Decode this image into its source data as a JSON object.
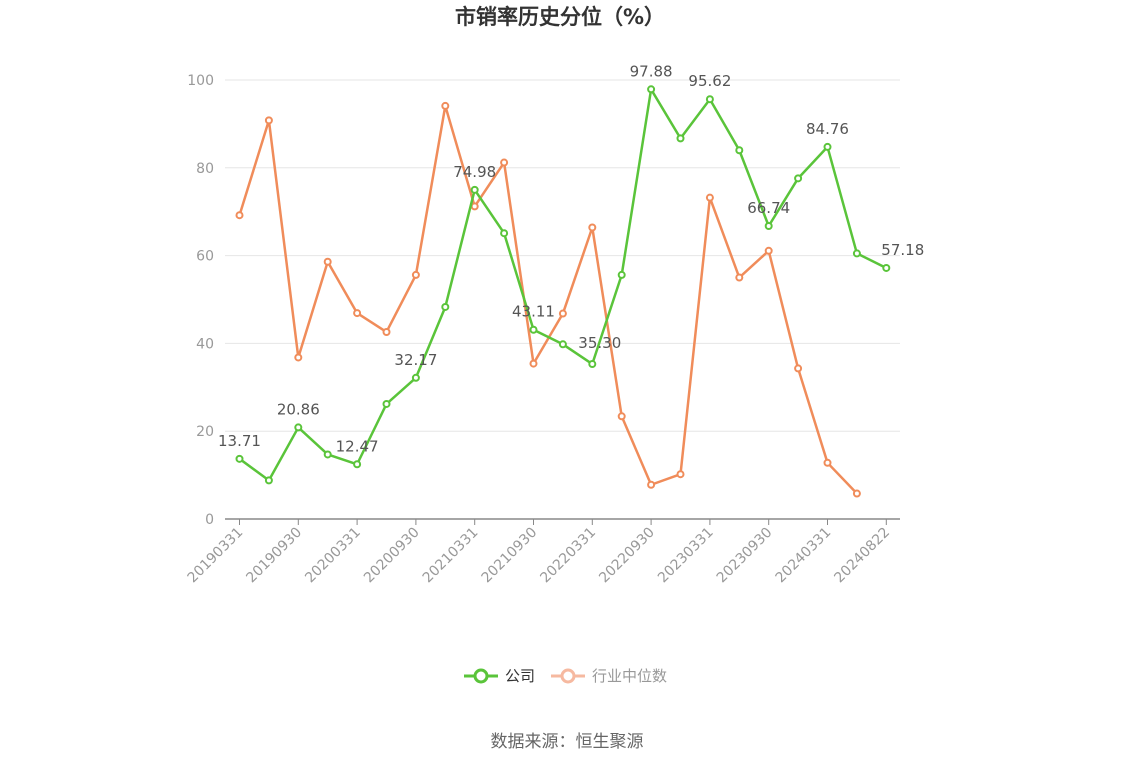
{
  "chart_data": {
    "type": "line",
    "title": "市销率历史分位（%）",
    "ylim": [
      0,
      100
    ],
    "yticks": [
      0,
      20,
      40,
      60,
      80,
      100
    ],
    "grid": true,
    "legend_position": "bottom-center",
    "x_tick_labels": [
      "20190331",
      "20190930",
      "20200331",
      "20200930",
      "20210331",
      "20210930",
      "20220331",
      "20220930",
      "20230331",
      "20230930",
      "20240331",
      "20240822"
    ],
    "x": [
      "20190331",
      "20190630",
      "20190930",
      "20191231",
      "20200331",
      "20200630",
      "20200930",
      "20201231",
      "20210331",
      "20210630",
      "20210930",
      "20211231",
      "20220331",
      "20220630",
      "20220930",
      "20221231",
      "20230331",
      "20230630",
      "20230930",
      "20231231",
      "20240331",
      "20240630",
      "20240822"
    ],
    "series": [
      {
        "name": "公司",
        "color": "#5ac43a",
        "values": [
          13.71,
          8.8,
          20.86,
          14.7,
          12.47,
          26.2,
          32.17,
          48.3,
          74.98,
          65.1,
          43.11,
          39.8,
          35.3,
          55.6,
          97.88,
          86.7,
          95.62,
          84.0,
          66.74,
          77.6,
          84.76,
          60.5,
          57.18
        ],
        "labels": [
          "13.71",
          "",
          "20.86",
          "",
          "12.47",
          "",
          "32.17",
          "",
          "74.98",
          "",
          "43.11",
          "",
          "35.30",
          "",
          "97.88",
          "",
          "95.62",
          "",
          "66.74",
          "",
          "84.76",
          "",
          "57.18"
        ]
      },
      {
        "name": "行业中位数",
        "color": "#f08c5a",
        "values": [
          69.2,
          90.8,
          36.8,
          58.6,
          46.9,
          42.6,
          55.6,
          94.1,
          71.2,
          81.2,
          35.4,
          46.8,
          66.4,
          23.4,
          7.8,
          10.2,
          73.2,
          55.0,
          61.1,
          34.3,
          12.8,
          5.8,
          null
        ],
        "labels": []
      }
    ]
  },
  "legend": {
    "company_label": "公司",
    "industry_label": "行业中位数"
  },
  "source_text": "数据来源：恒生聚源"
}
